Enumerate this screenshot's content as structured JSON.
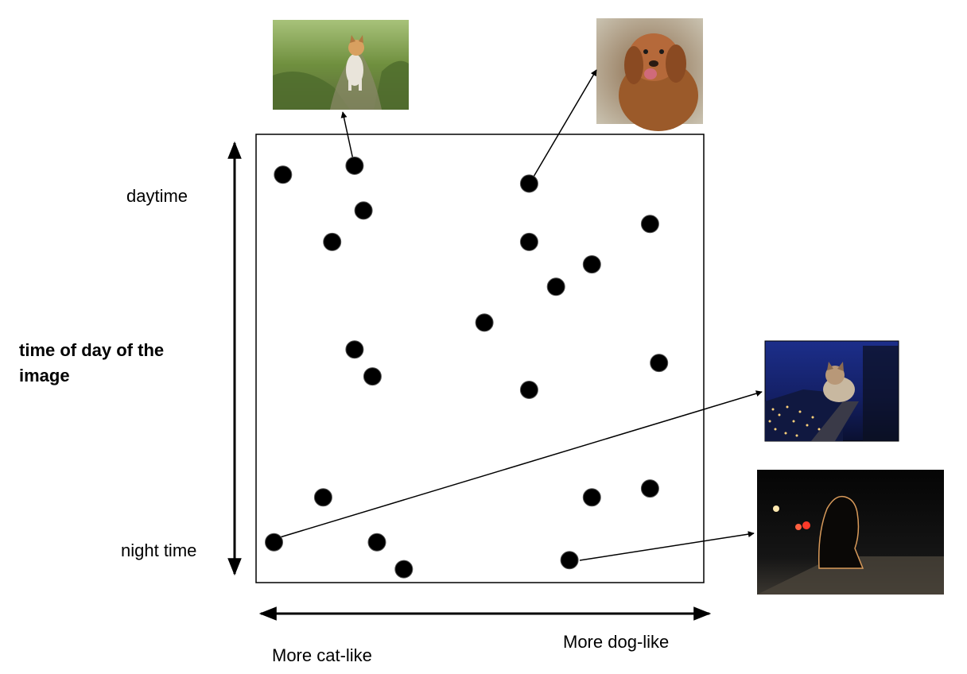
{
  "labels": {
    "y_top": "daytime",
    "y_bottom": "night time",
    "y_axis_title_line1": "time of day of the",
    "y_axis_title_line2": "image",
    "x_left": "More cat-like",
    "x_right": "More dog-like"
  },
  "images": [
    {
      "id": "cat-day",
      "depicts": "cat walking on a grassy path in daylight"
    },
    {
      "id": "dog-day",
      "depicts": "brown dog smiling outdoors in daylight"
    },
    {
      "id": "cat-night",
      "depicts": "cat sitting on a railing above a city at night"
    },
    {
      "id": "dog-night",
      "depicts": "silhouette of a dog on a street at night"
    }
  ],
  "points": [
    {
      "dogness": 0.06,
      "daytime": 0.91
    },
    {
      "dogness": 0.22,
      "daytime": 0.93
    },
    {
      "dogness": 0.24,
      "daytime": 0.83
    },
    {
      "dogness": 0.17,
      "daytime": 0.76
    },
    {
      "dogness": 0.61,
      "daytime": 0.89
    },
    {
      "dogness": 0.61,
      "daytime": 0.76
    },
    {
      "dogness": 0.75,
      "daytime": 0.71
    },
    {
      "dogness": 0.67,
      "daytime": 0.66
    },
    {
      "dogness": 0.88,
      "daytime": 0.8
    },
    {
      "dogness": 0.51,
      "daytime": 0.58
    },
    {
      "dogness": 0.22,
      "daytime": 0.52
    },
    {
      "dogness": 0.26,
      "daytime": 0.46
    },
    {
      "dogness": 0.61,
      "daytime": 0.43
    },
    {
      "dogness": 0.9,
      "daytime": 0.49
    },
    {
      "dogness": 0.15,
      "daytime": 0.19
    },
    {
      "dogness": 0.75,
      "daytime": 0.19
    },
    {
      "dogness": 0.88,
      "daytime": 0.21
    },
    {
      "dogness": 0.04,
      "daytime": 0.09
    },
    {
      "dogness": 0.27,
      "daytime": 0.09
    },
    {
      "dogness": 0.33,
      "daytime": 0.03
    },
    {
      "dogness": 0.7,
      "daytime": 0.05
    }
  ],
  "links": [
    {
      "point": 1,
      "image": "cat-day"
    },
    {
      "point": 4,
      "image": "dog-day"
    },
    {
      "point": 17,
      "image": "cat-night"
    },
    {
      "point": 20,
      "image": "dog-night"
    }
  ]
}
